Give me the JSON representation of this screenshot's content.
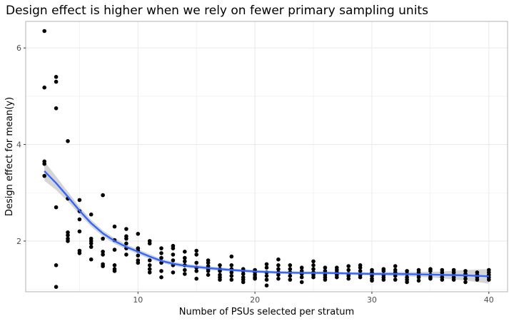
{
  "chart_data": {
    "type": "scatter",
    "title": "Design effect is higher when we rely on fewer primary sampling units",
    "xlabel": "Number of PSUs selected per stratum",
    "ylabel": "Design effect for mean(y)",
    "xlim": [
      0.4,
      41.6
    ],
    "ylim": [
      0.95,
      6.55
    ],
    "x_ticks": [
      10,
      20,
      30,
      40
    ],
    "x_tick_labels": [
      "10",
      "20",
      "30",
      "40"
    ],
    "y_ticks": [
      2,
      4,
      6
    ],
    "y_tick_labels": [
      "2",
      "4",
      "6"
    ],
    "grid": true,
    "legend": "none",
    "colors": {
      "points": "#000000",
      "smooth_line": "#3366FF",
      "confidence_band": "#BEBEBE",
      "grid": "#EBEBEB",
      "panel_border": "#B3B3B3"
    },
    "series": [
      {
        "values": [
          [
            2,
            6.35
          ],
          [
            2,
            5.18
          ],
          [
            2,
            3.65
          ],
          [
            2,
            3.6
          ],
          [
            2,
            3.35
          ],
          [
            3,
            5.4
          ],
          [
            3,
            5.3
          ],
          [
            3,
            4.75
          ],
          [
            3,
            2.7
          ],
          [
            3,
            1.5
          ],
          [
            3,
            1.05
          ],
          [
            4,
            4.07
          ],
          [
            4,
            2.88
          ],
          [
            4,
            2.18
          ],
          [
            4,
            2.12
          ],
          [
            4,
            2.05
          ],
          [
            4,
            2.0
          ],
          [
            5,
            2.85
          ],
          [
            5,
            2.62
          ],
          [
            5,
            2.45
          ],
          [
            5,
            2.2
          ],
          [
            5,
            1.8
          ],
          [
            5,
            1.75
          ],
          [
            6,
            2.55
          ],
          [
            6,
            2.05
          ],
          [
            6,
            2.0
          ],
          [
            6,
            1.95
          ],
          [
            6,
            1.88
          ],
          [
            6,
            1.62
          ],
          [
            7,
            2.95
          ],
          [
            7,
            2.05
          ],
          [
            7,
            1.78
          ],
          [
            7,
            1.72
          ],
          [
            7,
            1.52
          ],
          [
            7,
            1.48
          ],
          [
            8,
            2.3
          ],
          [
            8,
            2.02
          ],
          [
            8,
            1.82
          ],
          [
            8,
            1.5
          ],
          [
            8,
            1.42
          ],
          [
            8,
            1.38
          ],
          [
            9,
            2.25
          ],
          [
            9,
            2.1
          ],
          [
            9,
            2.05
          ],
          [
            9,
            1.95
          ],
          [
            9,
            1.85
          ],
          [
            9,
            1.72
          ],
          [
            10,
            2.15
          ],
          [
            10,
            1.85
          ],
          [
            10,
            1.8
          ],
          [
            10,
            1.7
          ],
          [
            10,
            1.6
          ],
          [
            10,
            1.55
          ],
          [
            11,
            2.0
          ],
          [
            11,
            1.95
          ],
          [
            11,
            1.6
          ],
          [
            11,
            1.5
          ],
          [
            11,
            1.42
          ],
          [
            11,
            1.35
          ],
          [
            12,
            1.85
          ],
          [
            12,
            1.75
          ],
          [
            12,
            1.65
          ],
          [
            12,
            1.55
          ],
          [
            12,
            1.38
          ],
          [
            12,
            1.25
          ],
          [
            13,
            1.9
          ],
          [
            13,
            1.85
          ],
          [
            13,
            1.72
          ],
          [
            13,
            1.6
          ],
          [
            13,
            1.5
          ],
          [
            13,
            1.35
          ],
          [
            14,
            1.78
          ],
          [
            14,
            1.65
          ],
          [
            14,
            1.58
          ],
          [
            14,
            1.5
          ],
          [
            14,
            1.4
          ],
          [
            14,
            1.32
          ],
          [
            15,
            1.8
          ],
          [
            15,
            1.72
          ],
          [
            15,
            1.55
          ],
          [
            15,
            1.45
          ],
          [
            15,
            1.38
          ],
          [
            15,
            1.22
          ],
          [
            16,
            1.6
          ],
          [
            16,
            1.55
          ],
          [
            16,
            1.48
          ],
          [
            16,
            1.42
          ],
          [
            16,
            1.38
          ],
          [
            16,
            1.3
          ],
          [
            17,
            1.5
          ],
          [
            17,
            1.42
          ],
          [
            17,
            1.38
          ],
          [
            17,
            1.3
          ],
          [
            17,
            1.25
          ],
          [
            17,
            1.2
          ],
          [
            18,
            1.68
          ],
          [
            18,
            1.5
          ],
          [
            18,
            1.42
          ],
          [
            18,
            1.35
          ],
          [
            18,
            1.28
          ],
          [
            18,
            1.2
          ],
          [
            19,
            1.42
          ],
          [
            19,
            1.38
          ],
          [
            19,
            1.32
          ],
          [
            19,
            1.25
          ],
          [
            19,
            1.2
          ],
          [
            19,
            1.15
          ],
          [
            20,
            1.4
          ],
          [
            20,
            1.35
          ],
          [
            20,
            1.3
          ],
          [
            20,
            1.25
          ],
          [
            20,
            1.22
          ],
          [
            21,
            1.52
          ],
          [
            21,
            1.45
          ],
          [
            21,
            1.35
          ],
          [
            21,
            1.28
          ],
          [
            21,
            1.2
          ],
          [
            21,
            1.08
          ],
          [
            22,
            1.62
          ],
          [
            22,
            1.5
          ],
          [
            22,
            1.42
          ],
          [
            22,
            1.35
          ],
          [
            22,
            1.3
          ],
          [
            22,
            1.22
          ],
          [
            23,
            1.5
          ],
          [
            23,
            1.42
          ],
          [
            23,
            1.35
          ],
          [
            23,
            1.28
          ],
          [
            23,
            1.2
          ],
          [
            24,
            1.45
          ],
          [
            24,
            1.38
          ],
          [
            24,
            1.32
          ],
          [
            24,
            1.25
          ],
          [
            24,
            1.15
          ],
          [
            25,
            1.58
          ],
          [
            25,
            1.5
          ],
          [
            25,
            1.42
          ],
          [
            25,
            1.35
          ],
          [
            25,
            1.3
          ],
          [
            25,
            1.25
          ],
          [
            26,
            1.45
          ],
          [
            26,
            1.38
          ],
          [
            26,
            1.3
          ],
          [
            26,
            1.25
          ],
          [
            26,
            1.2
          ],
          [
            27,
            1.45
          ],
          [
            27,
            1.4
          ],
          [
            27,
            1.35
          ],
          [
            27,
            1.3
          ],
          [
            27,
            1.25
          ],
          [
            28,
            1.48
          ],
          [
            28,
            1.4
          ],
          [
            28,
            1.32
          ],
          [
            28,
            1.28
          ],
          [
            28,
            1.22
          ],
          [
            29,
            1.5
          ],
          [
            29,
            1.45
          ],
          [
            29,
            1.38
          ],
          [
            29,
            1.3
          ],
          [
            29,
            1.25
          ],
          [
            30,
            1.4
          ],
          [
            30,
            1.35
          ],
          [
            30,
            1.28
          ],
          [
            30,
            1.22
          ],
          [
            30,
            1.18
          ],
          [
            31,
            1.42
          ],
          [
            31,
            1.38
          ],
          [
            31,
            1.3
          ],
          [
            31,
            1.25
          ],
          [
            31,
            1.2
          ],
          [
            32,
            1.48
          ],
          [
            32,
            1.4
          ],
          [
            32,
            1.35
          ],
          [
            32,
            1.28
          ],
          [
            32,
            1.2
          ],
          [
            33,
            1.38
          ],
          [
            33,
            1.32
          ],
          [
            33,
            1.25
          ],
          [
            33,
            1.2
          ],
          [
            33,
            1.15
          ],
          [
            34,
            1.4
          ],
          [
            34,
            1.35
          ],
          [
            34,
            1.3
          ],
          [
            34,
            1.25
          ],
          [
            34,
            1.18
          ],
          [
            35,
            1.42
          ],
          [
            35,
            1.38
          ],
          [
            35,
            1.3
          ],
          [
            35,
            1.25
          ],
          [
            35,
            1.22
          ],
          [
            36,
            1.4
          ],
          [
            36,
            1.35
          ],
          [
            36,
            1.3
          ],
          [
            36,
            1.25
          ],
          [
            36,
            1.2
          ],
          [
            37,
            1.4
          ],
          [
            37,
            1.35
          ],
          [
            37,
            1.3
          ],
          [
            37,
            1.25
          ],
          [
            37,
            1.2
          ],
          [
            38,
            1.38
          ],
          [
            38,
            1.32
          ],
          [
            38,
            1.28
          ],
          [
            38,
            1.22
          ],
          [
            38,
            1.15
          ],
          [
            39,
            1.35
          ],
          [
            39,
            1.3
          ],
          [
            39,
            1.25
          ],
          [
            39,
            1.2
          ],
          [
            40,
            1.4
          ],
          [
            40,
            1.35
          ],
          [
            40,
            1.3
          ],
          [
            40,
            1.25
          ],
          [
            40,
            1.2
          ]
        ]
      }
    ],
    "smooth": {
      "x": [
        2,
        3,
        4,
        5,
        6,
        7,
        8,
        9,
        10,
        11,
        12,
        13,
        14,
        16,
        18,
        20,
        22,
        24,
        26,
        28,
        30,
        32,
        34,
        36,
        38,
        40
      ],
      "y": [
        3.45,
        3.2,
        2.92,
        2.63,
        2.37,
        2.16,
        2.0,
        1.88,
        1.78,
        1.68,
        1.59,
        1.53,
        1.49,
        1.44,
        1.4,
        1.37,
        1.35,
        1.34,
        1.34,
        1.33,
        1.32,
        1.32,
        1.31,
        1.3,
        1.29,
        1.27
      ],
      "lower": [
        3.25,
        3.06,
        2.82,
        2.55,
        2.3,
        2.1,
        1.94,
        1.83,
        1.73,
        1.63,
        1.55,
        1.49,
        1.45,
        1.4,
        1.37,
        1.34,
        1.32,
        1.31,
        1.31,
        1.3,
        1.29,
        1.28,
        1.26,
        1.23,
        1.18,
        1.12
      ],
      "upper": [
        3.65,
        3.34,
        3.02,
        2.71,
        2.44,
        2.22,
        2.06,
        1.93,
        1.83,
        1.73,
        1.63,
        1.57,
        1.53,
        1.48,
        1.43,
        1.4,
        1.38,
        1.37,
        1.37,
        1.36,
        1.35,
        1.36,
        1.36,
        1.37,
        1.4,
        1.42
      ]
    }
  }
}
